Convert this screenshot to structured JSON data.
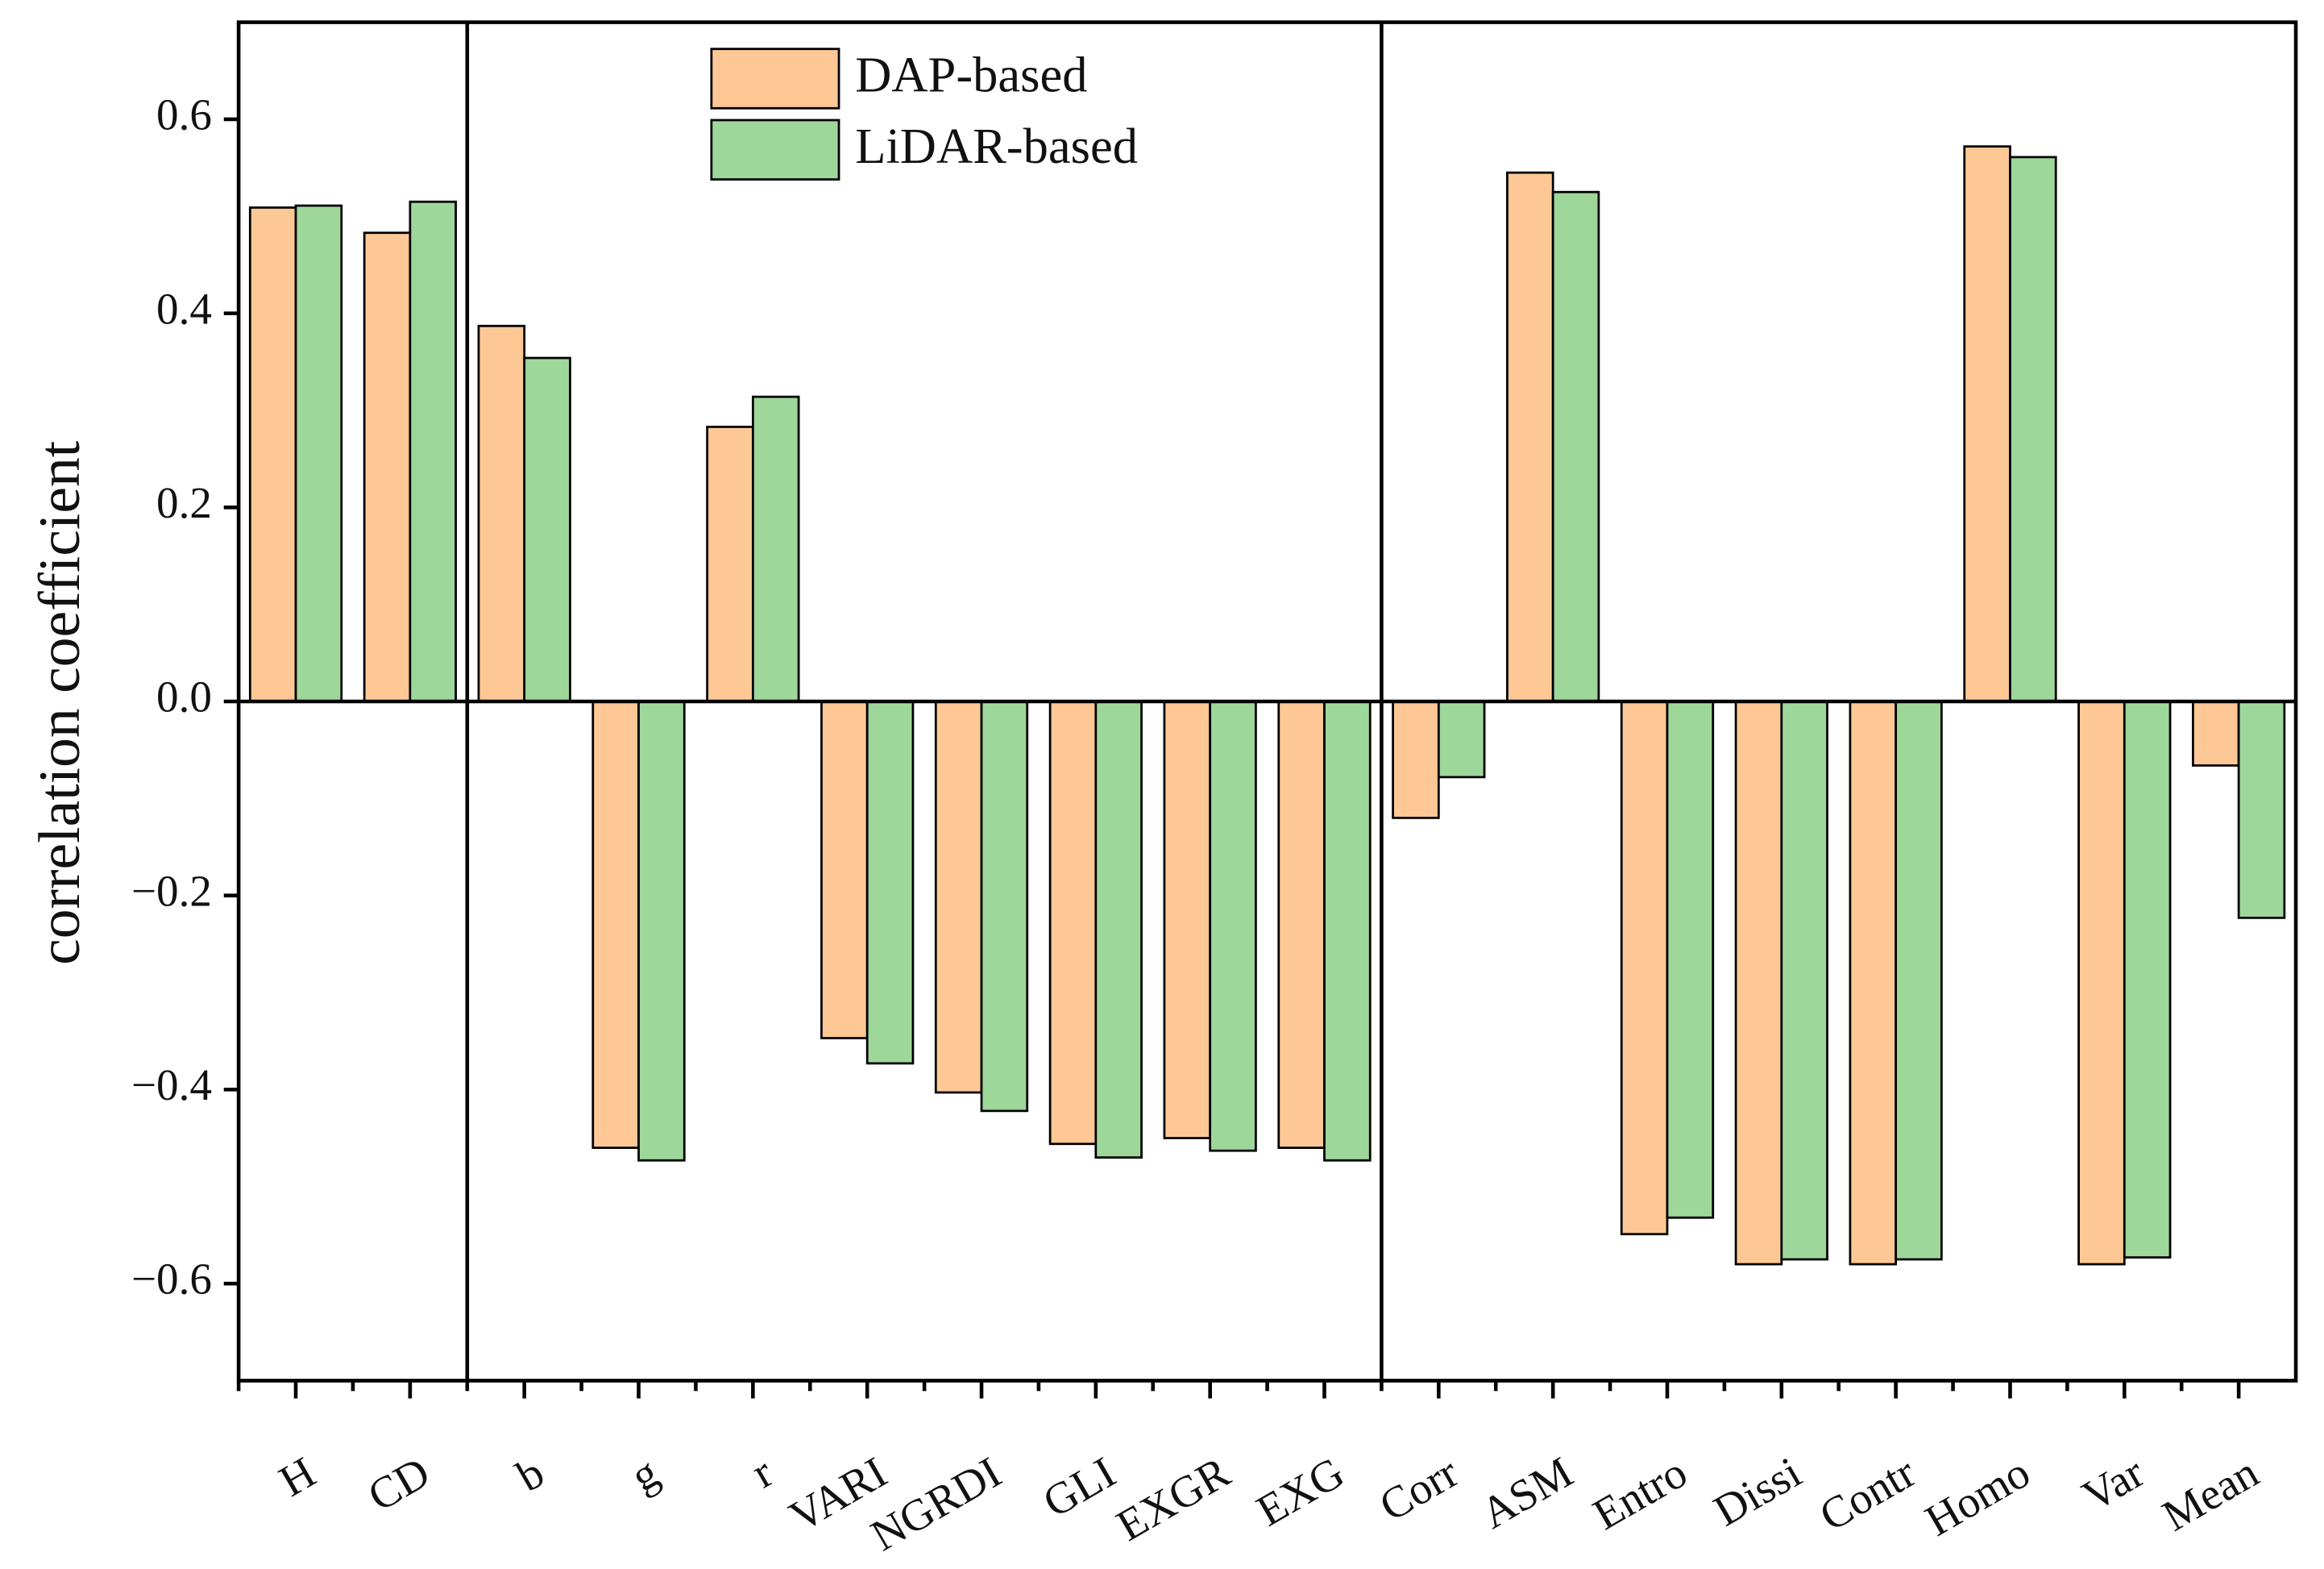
{
  "chart_data": {
    "type": "bar",
    "y_label": "correlation coefficient",
    "categories": [
      "H",
      "CD",
      "b",
      "g",
      "r",
      "VARI",
      "NGRDI",
      "GLI",
      "EXGR",
      "EXG",
      "Corr",
      "ASM",
      "Entro",
      "Dissi",
      "Contr",
      "Homo",
      "Var",
      "Mean"
    ],
    "series": [
      {
        "name": "DAP-based",
        "color": "#fdc896",
        "values": [
          0.509,
          0.483,
          0.387,
          -0.46,
          0.283,
          -0.347,
          -0.403,
          -0.456,
          -0.45,
          -0.46,
          -0.12,
          0.545,
          -0.549,
          -0.58,
          -0.58,
          0.572,
          -0.58,
          -0.066
        ]
      },
      {
        "name": "LiDAR-based",
        "color": "#9ed79a",
        "values": [
          0.511,
          0.515,
          0.354,
          -0.473,
          0.314,
          -0.373,
          -0.422,
          -0.47,
          -0.463,
          -0.473,
          -0.078,
          0.525,
          -0.532,
          -0.575,
          -0.575,
          0.561,
          -0.573,
          -0.223
        ]
      }
    ],
    "dividers": [
      2,
      10
    ],
    "ylim": [
      -0.7,
      0.7
    ],
    "yticks": [
      {
        "value": -0.6,
        "label": "−0.6"
      },
      {
        "value": -0.4,
        "label": "−0.4"
      },
      {
        "value": -0.2,
        "label": "−0.2"
      },
      {
        "value": 0,
        "label": "0.0"
      },
      0.2,
      0.4,
      0.6
    ],
    "legend": "top-center"
  }
}
